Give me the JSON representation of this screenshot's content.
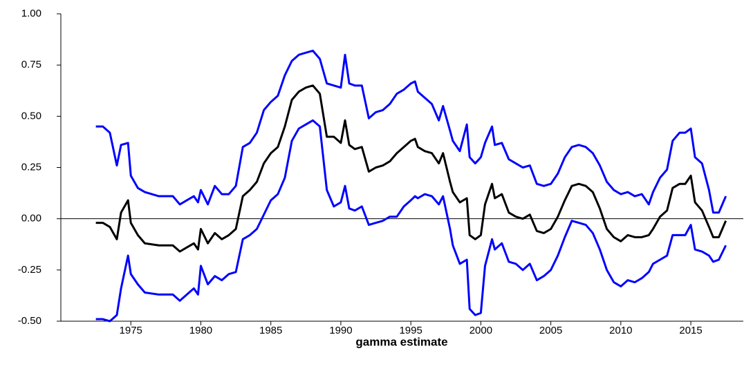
{
  "chart_data": {
    "type": "line",
    "x_label": "gamma estimate",
    "x": [
      1972.5,
      1973,
      1973.5,
      1974,
      1974.3,
      1974.8,
      1975,
      1975.5,
      1976,
      1977,
      1978,
      1978.5,
      1979,
      1979.5,
      1979.8,
      1980,
      1980.5,
      1981,
      1981.5,
      1982,
      1982.5,
      1983,
      1983.5,
      1984,
      1984.5,
      1985,
      1985.5,
      1986,
      1986.5,
      1987,
      1987.5,
      1988,
      1988.5,
      1989,
      1989.5,
      1990,
      1990.3,
      1990.6,
      1991,
      1991.5,
      1992,
      1992.5,
      1993,
      1993.5,
      1994,
      1994.5,
      1995,
      1995.3,
      1995.5,
      1996,
      1996.5,
      1997,
      1997.3,
      1997.8,
      1998,
      1998.5,
      1999,
      1999.2,
      1999.6,
      2000,
      2000.3,
      2000.8,
      2001,
      2001.5,
      2002,
      2002.5,
      2003,
      2003.5,
      2004,
      2004.5,
      2005,
      2005.5,
      2006,
      2006.5,
      2007,
      2007.5,
      2008,
      2008.5,
      2009,
      2009.5,
      2010,
      2010.5,
      2011,
      2011.5,
      2012,
      2012.3,
      2012.8,
      2013.3,
      2013.7,
      2014.2,
      2014.6,
      2015,
      2015.3,
      2015.8,
      2016.3,
      2016.6,
      2017,
      2017.5
    ],
    "series": [
      {
        "color": "#0000ff",
        "values": [
          0.45,
          0.45,
          0.42,
          0.26,
          0.36,
          0.37,
          0.21,
          0.15,
          0.13,
          0.11,
          0.11,
          0.07,
          0.09,
          0.11,
          0.08,
          0.14,
          0.07,
          0.16,
          0.12,
          0.12,
          0.16,
          0.35,
          0.37,
          0.42,
          0.53,
          0.57,
          0.6,
          0.7,
          0.77,
          0.8,
          0.81,
          0.82,
          0.78,
          0.66,
          0.65,
          0.64,
          0.8,
          0.66,
          0.65,
          0.65,
          0.49,
          0.52,
          0.53,
          0.56,
          0.61,
          0.63,
          0.66,
          0.67,
          0.62,
          0.59,
          0.56,
          0.48,
          0.55,
          0.43,
          0.38,
          0.33,
          0.46,
          0.3,
          0.27,
          0.3,
          0.37,
          0.45,
          0.36,
          0.37,
          0.29,
          0.27,
          0.25,
          0.26,
          0.17,
          0.16,
          0.17,
          0.22,
          0.3,
          0.35,
          0.36,
          0.35,
          0.32,
          0.26,
          0.18,
          0.14,
          0.12,
          0.13,
          0.11,
          0.12,
          0.07,
          0.13,
          0.2,
          0.24,
          0.38,
          0.42,
          0.42,
          0.44,
          0.3,
          0.27,
          0.14,
          0.03,
          0.03,
          0.11
        ]
      },
      {
        "color": "#000000",
        "values": [
          -0.02,
          -0.02,
          -0.04,
          -0.1,
          0.03,
          0.09,
          -0.02,
          -0.08,
          -0.12,
          -0.13,
          -0.13,
          -0.16,
          -0.14,
          -0.12,
          -0.15,
          -0.05,
          -0.12,
          -0.07,
          -0.1,
          -0.08,
          -0.05,
          0.11,
          0.14,
          0.18,
          0.27,
          0.32,
          0.35,
          0.45,
          0.58,
          0.62,
          0.64,
          0.65,
          0.61,
          0.4,
          0.4,
          0.37,
          0.48,
          0.36,
          0.34,
          0.35,
          0.23,
          0.25,
          0.26,
          0.28,
          0.32,
          0.35,
          0.38,
          0.39,
          0.35,
          0.33,
          0.32,
          0.27,
          0.32,
          0.18,
          0.13,
          0.08,
          0.1,
          -0.08,
          -0.1,
          -0.08,
          0.07,
          0.17,
          0.1,
          0.12,
          0.03,
          0.01,
          0.0,
          0.02,
          -0.06,
          -0.07,
          -0.05,
          0.01,
          0.09,
          0.16,
          0.17,
          0.16,
          0.13,
          0.05,
          -0.05,
          -0.09,
          -0.11,
          -0.08,
          -0.09,
          -0.09,
          -0.08,
          -0.05,
          0.01,
          0.04,
          0.15,
          0.17,
          0.17,
          0.21,
          0.08,
          0.04,
          -0.04,
          -0.09,
          -0.09,
          -0.01
        ]
      },
      {
        "color": "#0000ff",
        "values": [
          -0.49,
          -0.49,
          -0.5,
          -0.47,
          -0.34,
          -0.18,
          -0.27,
          -0.32,
          -0.36,
          -0.37,
          -0.37,
          -0.4,
          -0.37,
          -0.34,
          -0.37,
          -0.23,
          -0.32,
          -0.28,
          -0.3,
          -0.27,
          -0.26,
          -0.1,
          -0.08,
          -0.05,
          0.02,
          0.09,
          0.12,
          0.2,
          0.38,
          0.44,
          0.46,
          0.48,
          0.45,
          0.14,
          0.06,
          0.08,
          0.16,
          0.05,
          0.04,
          0.06,
          -0.03,
          -0.02,
          -0.01,
          0.01,
          0.01,
          0.06,
          0.09,
          0.11,
          0.1,
          0.12,
          0.11,
          0.07,
          0.11,
          -0.05,
          -0.13,
          -0.22,
          -0.2,
          -0.44,
          -0.47,
          -0.46,
          -0.23,
          -0.1,
          -0.15,
          -0.12,
          -0.21,
          -0.22,
          -0.25,
          -0.22,
          -0.3,
          -0.28,
          -0.25,
          -0.18,
          -0.09,
          -0.01,
          -0.02,
          -0.03,
          -0.07,
          -0.15,
          -0.25,
          -0.31,
          -0.33,
          -0.3,
          -0.31,
          -0.29,
          -0.26,
          -0.22,
          -0.2,
          -0.18,
          -0.08,
          -0.08,
          -0.08,
          -0.03,
          -0.15,
          -0.16,
          -0.18,
          -0.21,
          -0.2,
          -0.13
        ]
      }
    ],
    "xlim": [
      1970,
      2018.75
    ],
    "xticks": [
      1975,
      1980,
      1985,
      1990,
      1995,
      2000,
      2005,
      2010,
      2015
    ],
    "ylim": [
      -0.5,
      1.0
    ],
    "yticks": [
      {
        "value": 1.0,
        "label": "1.00"
      },
      {
        "value": 0.75,
        "label": "0.75"
      },
      {
        "value": 0.5,
        "label": "0.50"
      },
      {
        "value": 0.25,
        "label": "0.25"
      },
      {
        "value": 0,
        "label": "0.00"
      },
      {
        "value": -0.25,
        "label": "-0.25"
      },
      {
        "value": -0.5,
        "label": "-0.50"
      }
    ],
    "zero_line": true
  }
}
